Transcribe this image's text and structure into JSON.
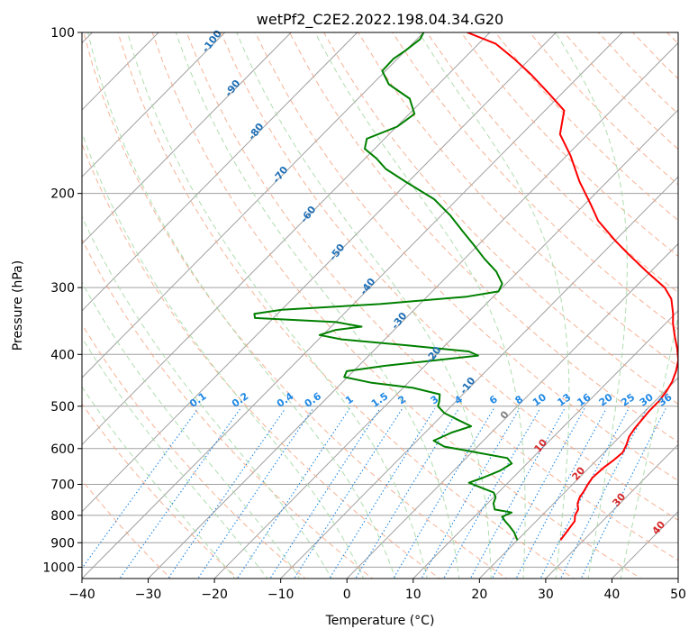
{
  "chart_data": {
    "type": "line",
    "title": "wetPf2_C2E2.2022.198.04.34.G20",
    "xlabel": "Temperature (°C)",
    "ylabel": "Pressure (hPa)",
    "xlim": [
      -40,
      50
    ],
    "ylim": [
      1050,
      100
    ],
    "x_ticks": [
      -40,
      -30,
      -20,
      -10,
      0,
      10,
      20,
      30,
      40,
      50
    ],
    "x_tick_labels": [
      "−40",
      "−30",
      "−20",
      "−10",
      "0",
      "10",
      "20",
      "30",
      "40",
      "50"
    ],
    "y_ticks": [
      100,
      200,
      300,
      400,
      500,
      600,
      700,
      800,
      900,
      1000
    ],
    "y_tick_labels": [
      "100",
      "200",
      "300",
      "400",
      "500",
      "600",
      "700",
      "800",
      "900",
      "1000"
    ],
    "colors": {
      "temperature": "#ff0000",
      "dewpoint": "#008000",
      "isotherm": "#a0a0a0",
      "dry_adiabat": "#f4a582",
      "moist_adiabat": "#a6d9a6",
      "mixing_ratio": "#1e88e5",
      "moist_label": "#1f6fb5",
      "dry_label": "#d62728",
      "outer_adiabat": "#d8bfa0"
    },
    "series": [
      {
        "name": "Temperature",
        "points": [
          [
            26.5,
            890
          ],
          [
            26.2,
            860
          ],
          [
            25.8,
            820
          ],
          [
            25.0,
            800
          ],
          [
            24.6,
            780
          ],
          [
            23.6,
            760
          ],
          [
            23.0,
            740
          ],
          [
            22.7,
            720
          ],
          [
            22.3,
            700
          ],
          [
            22.0,
            680
          ],
          [
            22.2,
            650
          ],
          [
            22.6,
            630
          ],
          [
            22.8,
            610
          ],
          [
            22.2,
            590
          ],
          [
            21.4,
            570
          ],
          [
            21.0,
            550
          ],
          [
            20.8,
            530
          ],
          [
            20.6,
            510
          ],
          [
            20.6,
            490
          ],
          [
            20.3,
            470
          ],
          [
            19.7,
            450
          ],
          [
            18.7,
            430
          ],
          [
            17.4,
            410
          ],
          [
            15.5,
            390
          ],
          [
            13.3,
            370
          ],
          [
            11.1,
            350
          ],
          [
            9.6,
            335
          ],
          [
            7.2,
            315
          ],
          [
            4.5,
            300
          ],
          [
            -0.6,
            280
          ],
          [
            -5.9,
            260
          ],
          [
            -10.0,
            245
          ],
          [
            -15.5,
            225
          ],
          [
            -19.0,
            210
          ],
          [
            -24.2,
            190
          ],
          [
            -29.4,
            170
          ],
          [
            -34.2,
            155
          ],
          [
            -37.1,
            140
          ],
          [
            -42.0,
            130
          ],
          [
            -47.4,
            120
          ],
          [
            -52.4,
            112
          ],
          [
            -57.4,
            105
          ],
          [
            -63.4,
            100
          ]
        ]
      },
      {
        "name": "Dewpoint",
        "points": [
          [
            20.0,
            890
          ],
          [
            18.3,
            860
          ],
          [
            16.5,
            835
          ],
          [
            15.3,
            820
          ],
          [
            14.2,
            805
          ],
          [
            15.0,
            790
          ],
          [
            12.0,
            780
          ],
          [
            10.9,
            760
          ],
          [
            10.3,
            740
          ],
          [
            9.3,
            725
          ],
          [
            6.7,
            710
          ],
          [
            4.1,
            695
          ],
          [
            5.5,
            680
          ],
          [
            7.0,
            660
          ],
          [
            7.7,
            640
          ],
          [
            6.2,
            625
          ],
          [
            -1.2,
            605
          ],
          [
            -5.0,
            595
          ],
          [
            -7.5,
            580
          ],
          [
            -6.0,
            560
          ],
          [
            -4.0,
            545
          ],
          [
            -7.0,
            530
          ],
          [
            -10.0,
            515
          ],
          [
            -12.0,
            500
          ],
          [
            -12.5,
            490
          ],
          [
            -13.5,
            475
          ],
          [
            -18.5,
            462
          ],
          [
            -25.5,
            452
          ],
          [
            -30.5,
            441
          ],
          [
            -31.0,
            430
          ],
          [
            -26.0,
            420
          ],
          [
            -19.0,
            410
          ],
          [
            -13.5,
            402
          ],
          [
            -15.5,
            395
          ],
          [
            -25.5,
            385
          ],
          [
            -36.5,
            375
          ],
          [
            -40.5,
            368
          ],
          [
            -38.8,
            360
          ],
          [
            -35.4,
            355
          ],
          [
            -40.0,
            348
          ],
          [
            -52.8,
            342
          ],
          [
            -53.5,
            336
          ],
          [
            -50.0,
            330
          ],
          [
            -36.0,
            322
          ],
          [
            -24.0,
            312
          ],
          [
            -20.0,
            305
          ],
          [
            -20.6,
            295
          ],
          [
            -23.3,
            280
          ],
          [
            -27.0,
            265
          ],
          [
            -30.6,
            250
          ],
          [
            -34.5,
            235
          ],
          [
            -38.6,
            220
          ],
          [
            -43.5,
            205
          ],
          [
            -50.5,
            190
          ],
          [
            -55.3,
            180
          ],
          [
            -58.3,
            172
          ],
          [
            -61.5,
            165
          ],
          [
            -62.7,
            158
          ],
          [
            -59.9,
            150
          ],
          [
            -59.2,
            142
          ],
          [
            -62.2,
            133
          ],
          [
            -67.5,
            125
          ],
          [
            -70.5,
            118
          ],
          [
            -70.6,
            112
          ],
          [
            -70.0,
            108
          ],
          [
            -69.5,
            103
          ],
          [
            -70.0,
            100
          ]
        ]
      }
    ],
    "moist_adiabat_labels": [
      "-100",
      "-90",
      "-80",
      "-70",
      "-60",
      "-50",
      "-40",
      "-30",
      "-20",
      "-10"
    ],
    "mixing_ratio_labels": [
      "0.1",
      "0.2",
      "0.4",
      "0.6",
      "1",
      "1.5",
      "2",
      "3",
      "4",
      "6",
      "8",
      "10",
      "13",
      "16",
      "20",
      "25",
      "30",
      "36"
    ],
    "dry_adiabat_labels": [
      "0",
      "10",
      "20",
      "30",
      "40"
    ]
  }
}
